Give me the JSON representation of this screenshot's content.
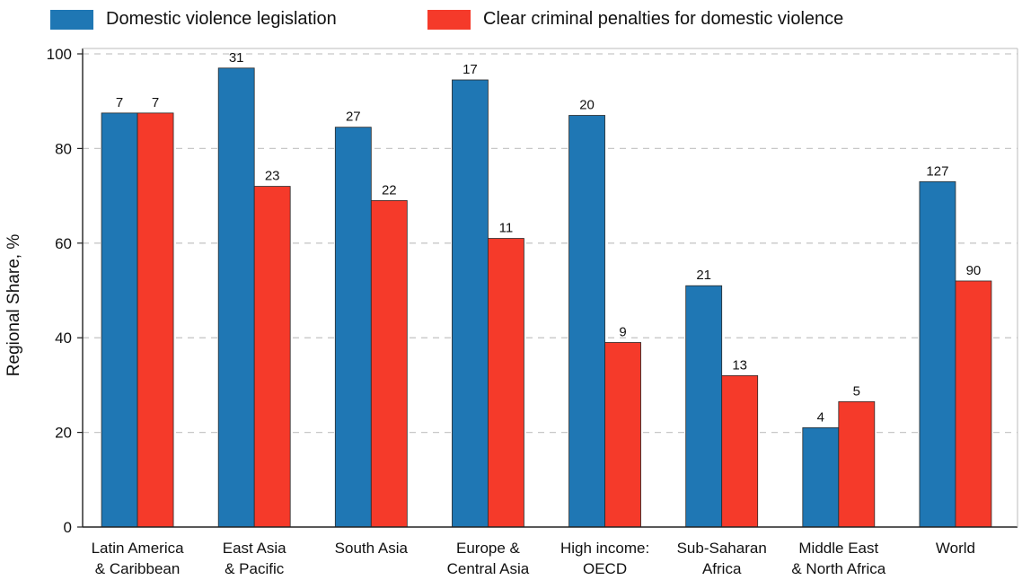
{
  "chart_data": {
    "type": "bar",
    "title": "",
    "xlabel": "",
    "ylabel": "Regional Share, %",
    "ylim": [
      0,
      100
    ],
    "yticks": [
      0,
      20,
      40,
      60,
      80,
      100
    ],
    "grid": true,
    "legend_position": "top",
    "categories": [
      [
        "Latin America",
        "& Caribbean"
      ],
      [
        "East Asia",
        "& Pacific"
      ],
      [
        "South Asia"
      ],
      [
        "Europe &",
        "Central Asia"
      ],
      [
        "High income:",
        "OECD"
      ],
      [
        "Sub-Saharan",
        "Africa"
      ],
      [
        "Middle East",
        "& North Africa"
      ],
      [
        "World"
      ]
    ],
    "series": [
      {
        "name": "Domestic violence legislation",
        "color": "#1f77b4",
        "values": [
          87.5,
          97,
          84.5,
          94.5,
          87,
          51,
          21,
          73
        ],
        "labels": [
          "7",
          "31",
          "27",
          "17",
          "20",
          "21",
          "4",
          "127"
        ]
      },
      {
        "name": "Clear criminal penalties for domestic violence",
        "color": "#f53a2a",
        "values": [
          87.5,
          72,
          69,
          61,
          39,
          32,
          26.5,
          52
        ],
        "labels": [
          "7",
          "23",
          "22",
          "11",
          "9",
          "13",
          "5",
          "90"
        ]
      }
    ]
  }
}
